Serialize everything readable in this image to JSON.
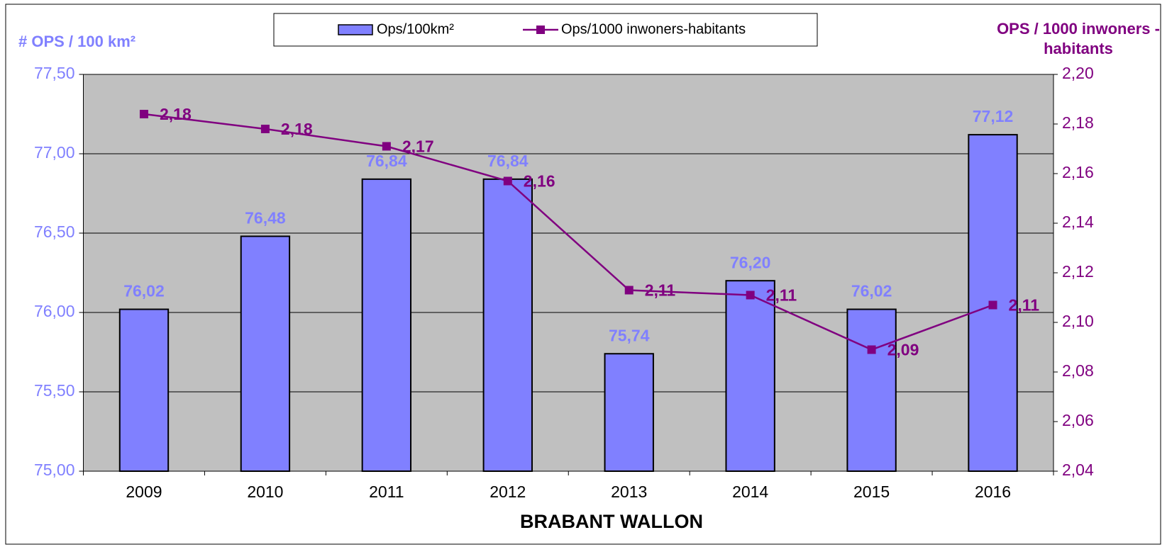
{
  "chart_data": {
    "type": "bar",
    "title": "BRABANT WALLON",
    "ylabel": "# OPS / 100 km²",
    "y2label": [
      "OPS / 1000 inwoners -",
      "habitants"
    ],
    "categories": [
      "2009",
      "2010",
      "2011",
      "2012",
      "2013",
      "2014",
      "2015",
      "2016"
    ],
    "series": [
      {
        "name": "Ops/100km²",
        "type": "bar",
        "color": "#8080ff",
        "values": [
          76.02,
          76.48,
          76.84,
          76.84,
          75.74,
          76.2,
          76.02,
          77.12
        ],
        "value_labels": [
          "76,02",
          "76,48",
          "76,84",
          "76,84",
          "75,74",
          "76,20",
          "76,02",
          "77,12"
        ]
      },
      {
        "name": "Ops/1000 inwoners-habitants",
        "type": "line",
        "axis": "y2",
        "color": "#800080",
        "values": [
          2.184,
          2.178,
          2.171,
          2.157,
          2.113,
          2.111,
          2.089,
          2.107
        ],
        "value_labels": [
          "2,18",
          "2,18",
          "2,17",
          "2,16",
          "2,11",
          "2,11",
          "2,09",
          "2,11"
        ]
      }
    ],
    "ylim": [
      75.0,
      77.5
    ],
    "yticks": [
      {
        "value": 75.0,
        "label": "75,00"
      },
      {
        "value": 75.5,
        "label": "75,50"
      },
      {
        "value": 76.0,
        "label": "76,00"
      },
      {
        "value": 76.5,
        "label": "76,50"
      },
      {
        "value": 77.0,
        "label": "77,00"
      },
      {
        "value": 77.5,
        "label": "77,50"
      }
    ],
    "y2lim": [
      2.04,
      2.2
    ],
    "y2ticks": [
      {
        "value": 2.04,
        "label": "2,04"
      },
      {
        "value": 2.06,
        "label": "2,06"
      },
      {
        "value": 2.08,
        "label": "2,08"
      },
      {
        "value": 2.1,
        "label": "2,10"
      },
      {
        "value": 2.12,
        "label": "2,12"
      },
      {
        "value": 2.14,
        "label": "2,14"
      },
      {
        "value": 2.16,
        "label": "2,16"
      },
      {
        "value": 2.18,
        "label": "2,18"
      },
      {
        "value": 2.2,
        "label": "2,20"
      }
    ],
    "grid": true,
    "legend": "top"
  }
}
